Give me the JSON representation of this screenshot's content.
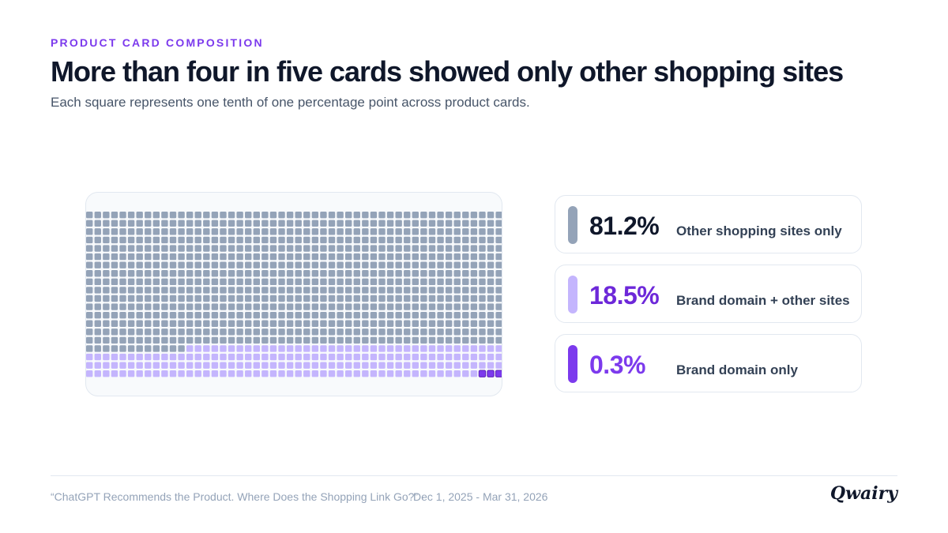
{
  "header": {
    "eyebrow": "PRODUCT CARD COMPOSITION",
    "title": "More than four in five cards showed only other shopping sites",
    "subtitle": "Each square represents one tenth of one percentage point across product cards."
  },
  "chart_data": {
    "type": "waffle",
    "unit_value": 0.1,
    "total_units": 1000,
    "series": [
      {
        "name": "Other shopping sites only",
        "value": 81.2,
        "value_label": "81.2%",
        "color": "#94a3b8",
        "text_color": "#0f172a"
      },
      {
        "name": "Brand domain + other sites",
        "value": 18.5,
        "value_label": "18.5%",
        "color": "#c4b5fd",
        "text_color": "#6d28d9"
      },
      {
        "name": "Brand domain only",
        "value": 0.3,
        "value_label": "0.3%",
        "color": "#7c3aed",
        "text_color": "#7c3aed"
      }
    ]
  },
  "footer": {
    "source": "“ChatGPT Recommends the Product. Where Does the Shopping Link Go?” ·",
    "date_range": "Dec 1, 2025 - Mar 31, 2026",
    "brand": "Qwairy"
  }
}
